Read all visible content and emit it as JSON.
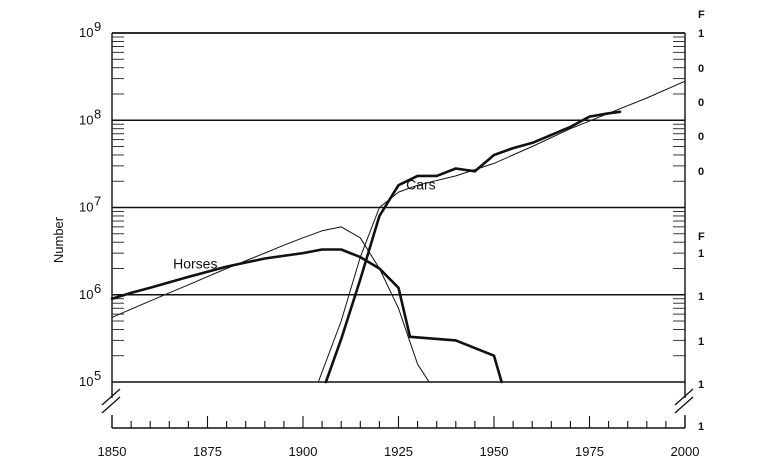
{
  "chart_data": {
    "type": "line",
    "title": "",
    "ylabel": "Number",
    "xlabel": "",
    "y_scale": "log",
    "ylim": [
      100000,
      1000000000
    ],
    "xlim": [
      1850,
      2000
    ],
    "x_tick_labels": [
      "1850",
      "1875",
      "1900",
      "1925",
      "1950",
      "1975",
      "2000"
    ],
    "x_ticks": [
      1850,
      1875,
      1900,
      1925,
      1950,
      1975,
      2000
    ],
    "y_ticks": [
      100000,
      1000000,
      10000000,
      100000000,
      1000000000
    ],
    "y_tick_labels": [
      {
        "base": "10",
        "exp": "5"
      },
      {
        "base": "10",
        "exp": "6"
      },
      {
        "base": "10",
        "exp": "7"
      },
      {
        "base": "10",
        "exp": "8"
      },
      {
        "base": "10",
        "exp": "9"
      }
    ],
    "grid": "horizontal lines at each decade",
    "axis_break_marks": true,
    "series": [
      {
        "name": "Horses",
        "label_at": [
          1866,
          2000000
        ],
        "x": [
          1850,
          1855,
          1860,
          1870,
          1880,
          1890,
          1900,
          1905,
          1910,
          1915,
          1920,
          1925,
          1928,
          1940,
          1950,
          1952
        ],
        "values": [
          900000,
          1050000,
          1200000,
          1600000,
          2100000,
          2600000,
          3000000,
          3300000,
          3300000,
          2700000,
          2000000,
          1200000,
          330000,
          300000,
          200000,
          100000
        ],
        "style": "thick"
      },
      {
        "name": "Cars",
        "label_at": [
          1927,
          16000000
        ],
        "x": [
          1906,
          1910,
          1915,
          1920,
          1925,
          1930,
          1935,
          1940,
          1945,
          1950,
          1955,
          1960,
          1965,
          1970,
          1975,
          1980,
          1983
        ],
        "values": [
          100000,
          310000,
          1500000,
          8000000,
          18000000,
          23000000,
          23000000,
          28000000,
          26000000,
          40000000,
          48000000,
          55000000,
          68000000,
          84000000,
          110000000,
          120000000,
          125000000
        ],
        "style": "thick"
      },
      {
        "name": "",
        "x": [
          1850,
          1860,
          1870,
          1880,
          1890,
          1895,
          1900,
          1905,
          1910,
          1915,
          1920,
          1925,
          1930,
          1933
        ],
        "values": [
          550000,
          850000,
          1300000,
          2000000,
          3000000,
          3700000,
          4500000,
          5400000,
          6000000,
          4500000,
          2000000,
          700000,
          160000,
          100000
        ],
        "style": "thin"
      },
      {
        "name": "",
        "x": [
          1904,
          1910,
          1915,
          1920,
          1925,
          1930,
          1940,
          1950,
          1960,
          1970,
          1980,
          1990,
          2000
        ],
        "values": [
          100000,
          500000,
          2700000,
          10000000,
          15000000,
          18000000,
          23000000,
          32000000,
          50000000,
          80000000,
          120000000,
          180000000,
          280000000
        ],
        "style": "thin"
      }
    ],
    "right_axis_fragments": [
      "F",
      "1",
      "0",
      "0",
      "0",
      "0",
      "F",
      "1",
      "1",
      "1",
      "1",
      "1"
    ]
  }
}
